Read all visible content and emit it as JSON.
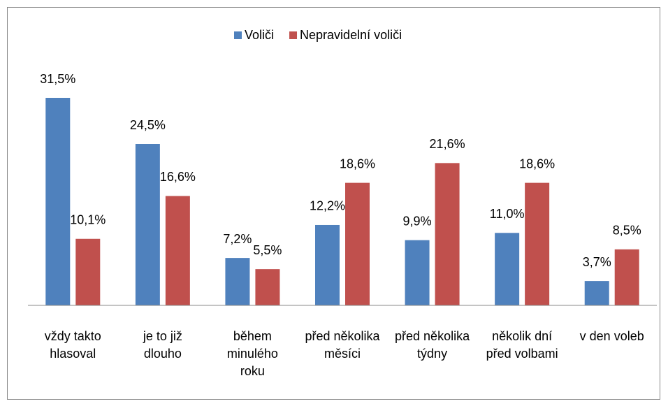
{
  "chart_data": {
    "type": "bar",
    "categories": [
      "vždy takto hlasoval",
      "je to již dlouho",
      "během minulého roku",
      "před několika měsíci",
      "před několika týdny",
      "několik dní před volbami",
      "v den voleb"
    ],
    "series": [
      {
        "name": "Voliči",
        "color": "#4f81bd",
        "values": [
          31.5,
          24.5,
          7.2,
          12.2,
          9.9,
          11.0,
          3.7
        ],
        "value_labels": [
          "31,5%",
          "24,5%",
          "7,2%",
          "12,2%",
          "9,9%",
          "11,0%",
          "3,7%"
        ]
      },
      {
        "name": "Nepravidelní voliči",
        "color": "#c0504d",
        "values": [
          10.1,
          16.6,
          5.5,
          18.6,
          21.6,
          18.6,
          8.5
        ],
        "value_labels": [
          "10,1%",
          "16,6%",
          "5,5%",
          "18,6%",
          "21,6%",
          "18,6%",
          "8,5%"
        ]
      }
    ],
    "ylim": [
      0,
      35
    ],
    "legend": "top"
  }
}
